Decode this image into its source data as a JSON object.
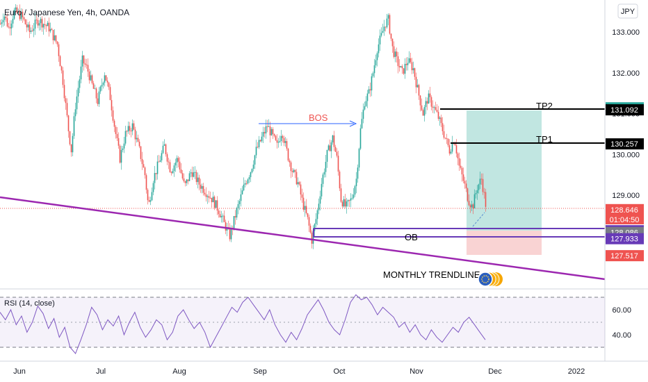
{
  "header": {
    "title": "Euro / Japanese Yen, 4h, OANDA",
    "currency_button": "JPY"
  },
  "colors": {
    "up": "#26a69a",
    "down": "#ef5350",
    "trendline": "#9c27b0",
    "ob": "#673ab7",
    "bos": "#2962ff",
    "rsi": "#7e57c2",
    "profit_zone": "#a7dcd4",
    "loss_zone": "#f8c8c8"
  },
  "chart_data": [
    {
      "type": "candlestick",
      "x_ticks": [
        "Jun",
        "Jul",
        "Aug",
        "Sep",
        "Oct",
        "Nov",
        "Dec",
        "2022"
      ],
      "y_ticks": [
        "133.000",
        "132.000",
        "131.000",
        "130.000",
        "129.000"
      ],
      "y_range": [
        127.3,
        133.6
      ],
      "grid": false,
      "price_series": [
        [
          0,
          133.2
        ],
        [
          5,
          133.45
        ],
        [
          12,
          133.1
        ],
        [
          20,
          133.5
        ],
        [
          30,
          133.4
        ],
        [
          42,
          133.0
        ],
        [
          55,
          133.3
        ],
        [
          70,
          133.1
        ],
        [
          82,
          132.7
        ],
        [
          90,
          131.8
        ],
        [
          98,
          130.6
        ],
        [
          102,
          130.1
        ],
        [
          108,
          131.2
        ],
        [
          118,
          132.3
        ],
        [
          125,
          132.1
        ],
        [
          132,
          131.7
        ],
        [
          140,
          131.3
        ],
        [
          150,
          132.0
        ],
        [
          158,
          131.4
        ],
        [
          165,
          130.6
        ],
        [
          172,
          129.9
        ],
        [
          180,
          130.5
        ],
        [
          190,
          130.7
        ],
        [
          200,
          130.1
        ],
        [
          208,
          129.5
        ],
        [
          213,
          128.7
        ],
        [
          220,
          129.4
        ],
        [
          228,
          129.8
        ],
        [
          236,
          130.2
        ],
        [
          245,
          129.6
        ],
        [
          255,
          129.9
        ],
        [
          265,
          129.2
        ],
        [
          275,
          129.6
        ],
        [
          285,
          129.3
        ],
        [
          295,
          129.1
        ],
        [
          305,
          128.9
        ],
        [
          315,
          128.6
        ],
        [
          322,
          128.3
        ],
        [
          330,
          128.0
        ],
        [
          338,
          128.5
        ],
        [
          345,
          128.9
        ],
        [
          352,
          129.3
        ],
        [
          360,
          129.6
        ],
        [
          368,
          130.1
        ],
        [
          376,
          130.4
        ],
        [
          384,
          130.7
        ],
        [
          390,
          130.5
        ],
        [
          398,
          130.2
        ],
        [
          405,
          130.6
        ],
        [
          413,
          130.0
        ],
        [
          420,
          129.6
        ],
        [
          428,
          129.3
        ],
        [
          435,
          128.8
        ],
        [
          442,
          128.4
        ],
        [
          448,
          127.9
        ],
        [
          455,
          128.5
        ],
        [
          462,
          129.3
        ],
        [
          470,
          130.0
        ],
        [
          478,
          130.4
        ],
        [
          484,
          129.9
        ],
        [
          490,
          128.9
        ],
        [
          497,
          128.7
        ],
        [
          505,
          128.9
        ],
        [
          512,
          129.4
        ],
        [
          518,
          130.6
        ],
        [
          524,
          131.3
        ],
        [
          530,
          131.5
        ],
        [
          536,
          132.0
        ],
        [
          542,
          132.6
        ],
        [
          548,
          132.9
        ],
        [
          553,
          133.2
        ],
        [
          558,
          133.3
        ],
        [
          564,
          132.6
        ],
        [
          570,
          132.3
        ],
        [
          578,
          132.0
        ],
        [
          586,
          132.3
        ],
        [
          594,
          132.1
        ],
        [
          600,
          131.6
        ],
        [
          608,
          131.0
        ],
        [
          615,
          131.4
        ],
        [
          622,
          131.2
        ],
        [
          630,
          130.9
        ],
        [
          638,
          130.5
        ],
        [
          646,
          130.1
        ],
        [
          653,
          130.4
        ],
        [
          660,
          129.7
        ],
        [
          667,
          129.3
        ],
        [
          673,
          128.9
        ],
        [
          679,
          128.7
        ],
        [
          686,
          129.2
        ],
        [
          692,
          129.4
        ],
        [
          697,
          128.9
        ],
        [
          699,
          128.65
        ]
      ],
      "last_price": "128.646",
      "countdown": "01:04:50"
    },
    {
      "type": "line",
      "title": "RSI (14, close)",
      "y_ticks": [
        "60.00",
        "40.00"
      ],
      "y_range": [
        27,
        73
      ],
      "bands": [
        70,
        50,
        30
      ],
      "values": [
        58,
        52,
        60,
        48,
        55,
        42,
        50,
        63,
        57,
        45,
        53,
        38,
        46,
        30,
        25,
        36,
        48,
        62,
        56,
        44,
        52,
        47,
        55,
        40,
        50,
        58,
        46,
        38,
        44,
        52,
        48,
        36,
        42,
        55,
        60,
        52,
        45,
        50,
        42,
        30,
        38,
        46,
        54,
        62,
        58,
        66,
        70,
        64,
        58,
        52,
        60,
        48,
        40,
        34,
        42,
        36,
        45,
        56,
        62,
        68,
        60,
        50,
        44,
        40,
        52,
        66,
        72,
        68,
        70,
        64,
        56,
        62,
        58,
        54,
        46,
        50,
        42,
        48,
        40,
        36,
        44,
        38,
        34,
        40,
        46,
        42,
        50,
        54,
        48,
        42,
        36
      ]
    }
  ],
  "price_labels": [
    {
      "text": "131.141",
      "price": 131.141,
      "color": "#26a69a"
    },
    {
      "text": "131.092",
      "price": 131.092,
      "color": "#000000"
    },
    {
      "text": "130.257",
      "price": 130.257,
      "color": "#000000"
    },
    {
      "text": "128.646",
      "price": 128.646,
      "color": "#ef5350"
    },
    {
      "text": "128.129",
      "price": 128.129,
      "color": "#673ab7"
    },
    {
      "text": "128.086",
      "price": 128.086,
      "color": "#787b86"
    },
    {
      "text": "127.933",
      "price": 127.933,
      "color": "#673ab7"
    },
    {
      "text": "127.517",
      "price": 127.517,
      "color": "#ef5350"
    }
  ],
  "annotations": {
    "bos": "BOS",
    "tp1": "TP1",
    "tp2": "TP2",
    "ob": "OB",
    "monthly_trendline": "MONTHLY TRENDLINE"
  }
}
